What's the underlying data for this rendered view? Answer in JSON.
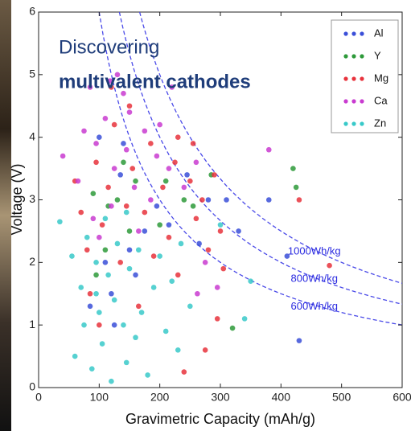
{
  "chart_data": {
    "type": "scatter",
    "title": "Discovering",
    "subtitle": "multivalent cathodes",
    "x_label": "Gravimetric Capacity (mAh/g)",
    "y_label": "Voltage (V)",
    "xlim": [
      0,
      600
    ],
    "ylim": [
      0,
      6
    ],
    "xticks": [
      0,
      100,
      200,
      300,
      400,
      500,
      600
    ],
    "yticks": [
      0,
      1,
      2,
      3,
      4,
      5,
      6
    ],
    "legend": "upper right",
    "curve_color": "#4a4ae8",
    "energy_lines": [
      {
        "label": "1000Wh/kg",
        "value": 1000
      },
      {
        "label": "800Wh/kg",
        "value": 800
      },
      {
        "label": "600Wh/kg",
        "value": 600
      }
    ],
    "series": [
      {
        "name": "Al",
        "color": "#3a4fd8",
        "x": [
          85,
          110,
          120,
          135,
          150,
          160,
          175,
          215,
          245,
          280,
          310,
          330,
          380,
          410,
          430,
          100,
          125,
          140,
          195,
          265
        ],
        "y": [
          1.3,
          2.0,
          1.5,
          3.4,
          2.2,
          1.8,
          2.5,
          2.6,
          3.4,
          3.0,
          3.0,
          2.5,
          3.0,
          2.1,
          0.75,
          4.0,
          1.0,
          3.9,
          2.9,
          2.3
        ]
      },
      {
        "name": "Y",
        "color": "#2e9a3a",
        "x": [
          90,
          110,
          130,
          150,
          160,
          200,
          210,
          240,
          255,
          285,
          320,
          420,
          425,
          140,
          115,
          95
        ],
        "y": [
          3.1,
          2.2,
          3.0,
          2.5,
          3.3,
          2.6,
          3.3,
          3.0,
          2.9,
          3.4,
          0.95,
          3.5,
          3.2,
          3.6,
          2.9,
          1.8
        ]
      },
      {
        "name": "Mg",
        "color": "#e8323c",
        "x": [
          60,
          70,
          80,
          85,
          95,
          100,
          105,
          115,
          125,
          135,
          145,
          155,
          165,
          175,
          185,
          190,
          205,
          215,
          225,
          230,
          240,
          250,
          260,
          270,
          280,
          290,
          295,
          300,
          305,
          275,
          230,
          150,
          120,
          430,
          480,
          255
        ],
        "y": [
          3.3,
          2.8,
          2.2,
          1.5,
          3.6,
          1.0,
          2.6,
          3.2,
          4.2,
          2.0,
          2.9,
          3.5,
          1.3,
          2.8,
          3.9,
          2.1,
          3.2,
          2.4,
          3.6,
          1.8,
          0.25,
          3.3,
          2.7,
          3.0,
          2.2,
          3.4,
          1.1,
          2.5,
          1.9,
          0.6,
          4.0,
          4.5,
          4.8,
          3.0,
          1.95,
          3.9
        ]
      },
      {
        "name": "Ca",
        "color": "#c93bd0",
        "x": [
          40,
          65,
          75,
          85,
          95,
          100,
          110,
          118,
          125,
          130,
          140,
          145,
          150,
          158,
          165,
          175,
          185,
          195,
          215,
          240,
          260,
          275,
          295,
          220,
          380,
          120,
          90,
          200,
          262
        ],
        "y": [
          3.7,
          3.3,
          4.1,
          4.8,
          3.9,
          2.4,
          4.3,
          4.9,
          3.5,
          5.0,
          4.7,
          3.8,
          4.4,
          3.2,
          2.5,
          4.1,
          3.0,
          3.7,
          3.5,
          3.2,
          3.6,
          2.0,
          1.6,
          4.8,
          3.8,
          2.9,
          2.7,
          4.2,
          1.5
        ]
      },
      {
        "name": "Zn",
        "color": "#38c9c9",
        "x": [
          35,
          55,
          60,
          70,
          75,
          80,
          88,
          95,
          100,
          105,
          110,
          115,
          120,
          125,
          130,
          140,
          145,
          150,
          160,
          165,
          170,
          180,
          190,
          200,
          210,
          220,
          230,
          235,
          250,
          300,
          340,
          350,
          145,
          95
        ],
        "y": [
          2.65,
          2.1,
          0.5,
          1.6,
          1.0,
          2.4,
          0.3,
          2.0,
          1.2,
          0.7,
          2.7,
          1.8,
          0.1,
          1.4,
          2.3,
          1.0,
          0.4,
          1.9,
          0.8,
          2.2,
          1.2,
          0.2,
          1.6,
          2.1,
          0.9,
          1.7,
          0.6,
          2.3,
          1.3,
          2.6,
          1.1,
          1.7,
          2.8,
          1.5
        ]
      }
    ]
  }
}
